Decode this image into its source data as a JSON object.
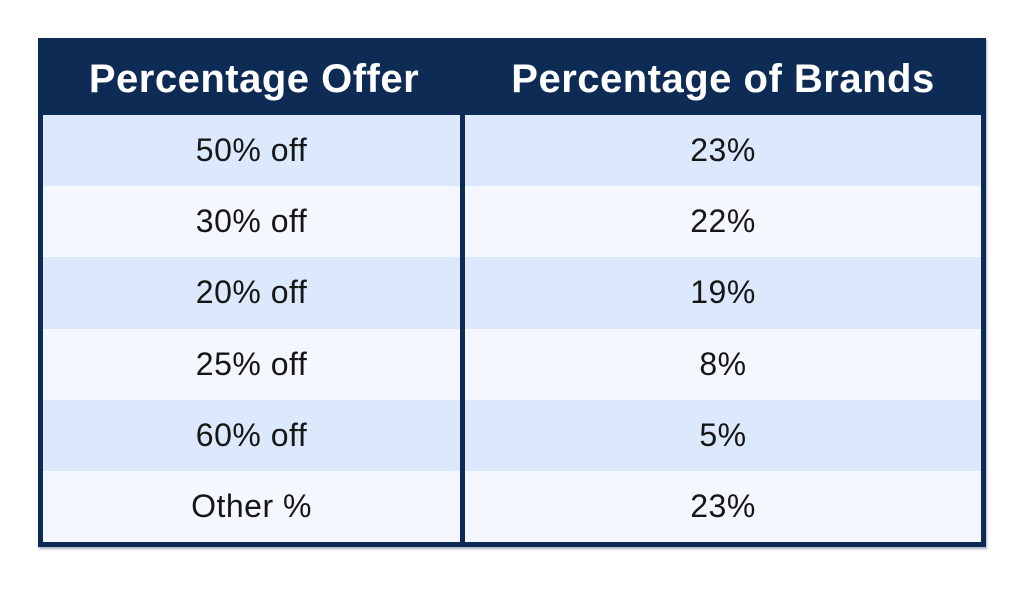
{
  "table": {
    "header": {
      "offer": "Percentage Offer",
      "brands": "Percentage of Brands"
    },
    "rows": [
      {
        "offer": "50% off",
        "brands": "23%"
      },
      {
        "offer": "30% off",
        "brands": "22%"
      },
      {
        "offer": "20% off",
        "brands": "19%"
      },
      {
        "offer": "25% off",
        "brands": "8%"
      },
      {
        "offer": "60% off",
        "brands": "5%"
      },
      {
        "offer": "Other %",
        "brands": "23%"
      }
    ],
    "colors": {
      "header_bg": "#0d2b55",
      "border": "#0d2b55",
      "row_alt": "#dce9fc",
      "row_base": "#f4f7fd",
      "header_text": "#ffffff",
      "body_text": "#161616"
    }
  },
  "chart_data": {
    "type": "table",
    "title": "",
    "columns": [
      "Percentage Offer",
      "Percentage of Brands"
    ],
    "categories": [
      "50% off",
      "30% off",
      "20% off",
      "25% off",
      "60% off",
      "Other %"
    ],
    "values": [
      23,
      22,
      19,
      8,
      5,
      23
    ],
    "value_unit": "%",
    "layout": {
      "header_style": "navy-bold-white",
      "row_striping": "alternating light blue / near-white, first row tinted",
      "grid": "outer navy border and navy column divider only"
    }
  }
}
